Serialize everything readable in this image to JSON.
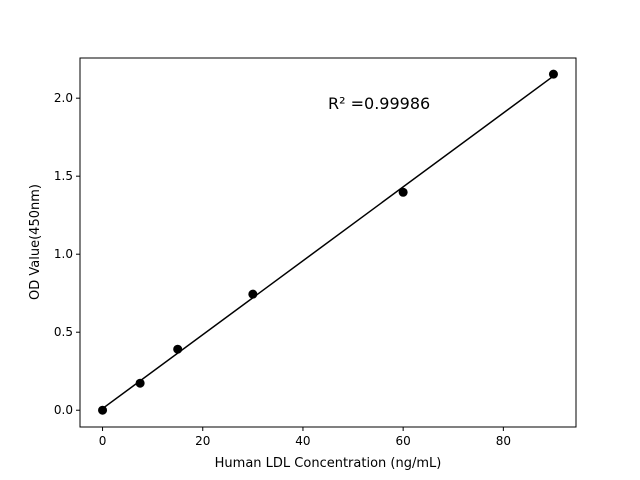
{
  "chart_data": {
    "type": "scatter",
    "title": "",
    "xlabel": "Human LDL Concentration (ng/mL)",
    "ylabel": "OD Value(450nm)",
    "xlim": [
      -4.5,
      94.5
    ],
    "ylim": [
      -0.1075,
      2.2575
    ],
    "xticks": [
      0,
      20,
      40,
      60,
      80
    ],
    "yticks": [
      0.0,
      0.5,
      1.0,
      1.5,
      2.0
    ],
    "xtick_labels": [
      "0",
      "20",
      "40",
      "60",
      "80"
    ],
    "ytick_labels": [
      "0.0",
      "0.5",
      "1.0",
      "1.5",
      "2.0"
    ],
    "grid": false,
    "points": {
      "x": [
        0,
        7.5,
        15,
        30,
        60,
        90
      ],
      "y": [
        0.0,
        0.173,
        0.391,
        0.744,
        1.397,
        2.154
      ]
    },
    "fit_line": "linear",
    "annotation": "R² =0.99986",
    "annotation_position": {
      "x": 45,
      "y": 1.93
    },
    "color": "#000000"
  }
}
